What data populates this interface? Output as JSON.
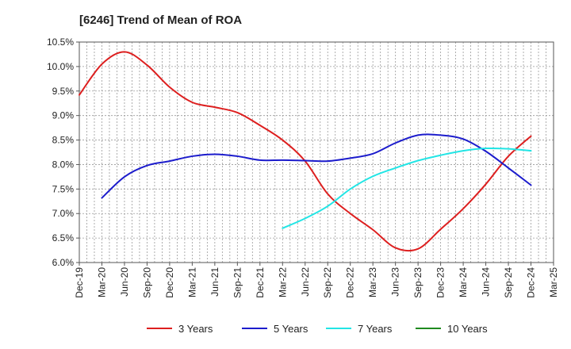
{
  "chart_data": {
    "type": "line",
    "title": "[6246]  Trend of Mean of ROA",
    "xlabel": "",
    "ylabel": "",
    "ylim": [
      6.0,
      10.5
    ],
    "y_ticks": [
      "6.0%",
      "6.5%",
      "7.0%",
      "7.5%",
      "8.0%",
      "8.5%",
      "9.0%",
      "9.5%",
      "10.0%",
      "10.5%"
    ],
    "y_tick_values": [
      6.0,
      6.5,
      7.0,
      7.5,
      8.0,
      8.5,
      9.0,
      9.5,
      10.0,
      10.5
    ],
    "categories": [
      "Dec-19",
      "Mar-20",
      "Jun-20",
      "Sep-20",
      "Dec-20",
      "Mar-21",
      "Jun-21",
      "Sep-21",
      "Dec-21",
      "Mar-22",
      "Jun-22",
      "Sep-22",
      "Dec-22",
      "Mar-23",
      "Jun-23",
      "Sep-23",
      "Dec-23",
      "Mar-24",
      "Jun-24",
      "Sep-24",
      "Dec-24",
      "Mar-25"
    ],
    "grid": true,
    "legend_position": "bottom",
    "series": [
      {
        "name": "3 Years",
        "color": "#dd1f1f",
        "values": [
          9.42,
          10.05,
          10.3,
          10.03,
          9.58,
          9.27,
          9.17,
          9.06,
          8.8,
          8.5,
          8.07,
          7.4,
          7.0,
          6.67,
          6.3,
          6.28,
          6.68,
          7.1,
          7.6,
          8.17,
          8.58,
          null
        ]
      },
      {
        "name": "5 Years",
        "color": "#1c1ccc",
        "values": [
          null,
          7.32,
          7.75,
          7.98,
          8.07,
          8.17,
          8.21,
          8.17,
          8.09,
          8.09,
          8.08,
          8.07,
          8.13,
          8.22,
          8.44,
          8.6,
          8.6,
          8.52,
          8.27,
          7.93,
          7.58,
          null
        ]
      },
      {
        "name": "7 Years",
        "color": "#22e5e5",
        "values": [
          null,
          null,
          null,
          null,
          null,
          null,
          null,
          null,
          null,
          6.7,
          6.9,
          7.15,
          7.5,
          7.76,
          7.93,
          8.08,
          8.19,
          8.28,
          8.33,
          8.32,
          8.28,
          null
        ]
      },
      {
        "name": "10 Years",
        "color": "#1f8a1f",
        "values": [
          null,
          null,
          null,
          null,
          null,
          null,
          null,
          null,
          null,
          null,
          null,
          null,
          null,
          null,
          null,
          null,
          null,
          null,
          null,
          null,
          null,
          null
        ]
      }
    ]
  }
}
